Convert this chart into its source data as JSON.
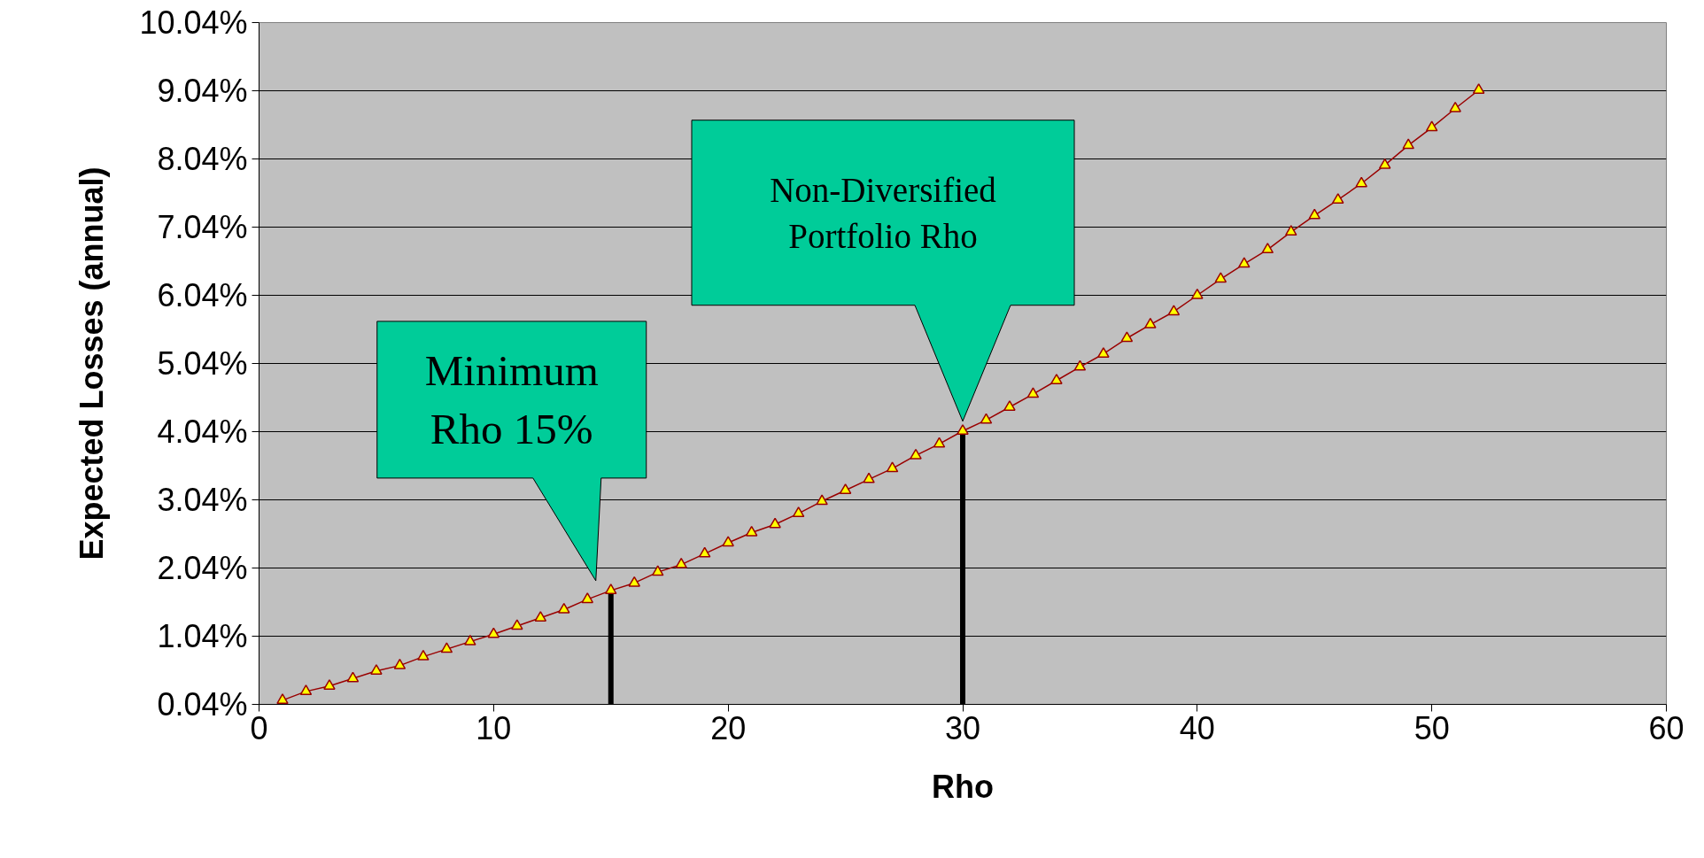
{
  "chart_data": {
    "type": "line",
    "xlabel": "Rho",
    "ylabel": "Expected Losses (annual)",
    "x": [
      1,
      2,
      3,
      4,
      5,
      6,
      7,
      8,
      9,
      10,
      11,
      12,
      13,
      14,
      15,
      16,
      17,
      18,
      19,
      20,
      21,
      22,
      23,
      24,
      25,
      26,
      27,
      28,
      29,
      30,
      31,
      32,
      33,
      34,
      35,
      36,
      37,
      38,
      39,
      40,
      41,
      42,
      43,
      44,
      45,
      46,
      47,
      48,
      49,
      50,
      51,
      52
    ],
    "series": [
      {
        "color": "#990000",
        "values": [
          0.1,
          0.23,
          0.31,
          0.42,
          0.53,
          0.61,
          0.74,
          0.85,
          0.96,
          1.07,
          1.19,
          1.31,
          1.43,
          1.58,
          1.71,
          1.82,
          1.98,
          2.09,
          2.25,
          2.41,
          2.56,
          2.68,
          2.84,
          3.02,
          3.18,
          3.34,
          3.5,
          3.69,
          3.86,
          4.05,
          4.21,
          4.4,
          4.59,
          4.79,
          4.99,
          5.18,
          5.41,
          5.61,
          5.8,
          6.04,
          6.28,
          6.5,
          6.71,
          6.97,
          7.21,
          7.44,
          7.68,
          7.95,
          8.24,
          8.5,
          8.78,
          9.05
        ]
      }
    ],
    "xlim": [
      0,
      60
    ],
    "xticks": [
      0,
      10,
      20,
      30,
      40,
      50,
      60
    ],
    "ylim": [
      0.04,
      10.04
    ],
    "yticks": [
      {
        "value": 0.04,
        "label": "0.04%"
      },
      {
        "value": 1.04,
        "label": "1.04%"
      },
      {
        "value": 2.04,
        "label": "2.04%"
      },
      {
        "value": 3.04,
        "label": "3.04%"
      },
      {
        "value": 4.04,
        "label": "4.04%"
      },
      {
        "value": 5.04,
        "label": "5.04%"
      },
      {
        "value": 6.04,
        "label": "6.04%"
      },
      {
        "value": 7.04,
        "label": "7.04%"
      },
      {
        "value": 8.04,
        "label": "8.04%"
      },
      {
        "value": 9.04,
        "label": "9.04%"
      },
      {
        "value": 10.04,
        "label": "10.04%"
      }
    ],
    "grid": "y",
    "marker": "triangle",
    "line_style": "solid",
    "ref_lines": [
      {
        "axis": "x",
        "value": 15,
        "color": "#000000"
      },
      {
        "axis": "x",
        "value": 30,
        "color": "#000000"
      }
    ],
    "annotations": [
      "Minimum\nRho 15%",
      "Non-Diversified\nPortfolio Rho"
    ]
  }
}
